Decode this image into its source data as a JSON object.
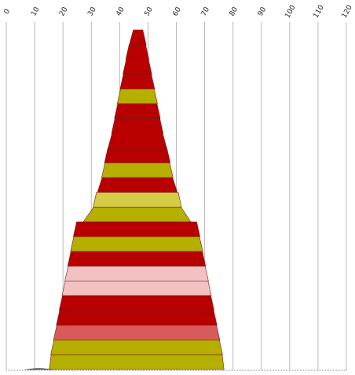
{
  "chart_data": {
    "type": "bar",
    "orientation": "horizontal",
    "layout": "centered-funnel",
    "title": "",
    "xlabel": "",
    "ylabel": "",
    "xlim": [
      0,
      120
    ],
    "ticks": [
      "0",
      "10",
      "20",
      "30",
      "40",
      "50",
      "60",
      "70",
      "80",
      "90",
      "100",
      "110",
      "120"
    ],
    "grid": true,
    "legend": "none",
    "colors": {
      "red": "#b80000",
      "olive": "#b5b000",
      "yellow": "#d4cc44",
      "pink": "#f2c2c2",
      "salmon": "#d85a5a"
    },
    "bars": [
      {
        "start": 44.5,
        "end": 48.5,
        "color": "red"
      },
      {
        "start": 43.0,
        "end": 49.5,
        "color": "red"
      },
      {
        "start": 42.0,
        "end": 50.5,
        "color": "red"
      },
      {
        "start": 41.0,
        "end": 51.5,
        "color": "red"
      },
      {
        "start": 40.0,
        "end": 52.5,
        "color": "olive"
      },
      {
        "start": 39.0,
        "end": 53.5,
        "color": "red"
      },
      {
        "start": 38.0,
        "end": 54.5,
        "color": "red"
      },
      {
        "start": 37.0,
        "end": 55.5,
        "color": "red"
      },
      {
        "start": 35.5,
        "end": 57.0,
        "color": "red"
      },
      {
        "start": 34.5,
        "end": 58.0,
        "color": "olive"
      },
      {
        "start": 33.5,
        "end": 59.0,
        "color": "red"
      },
      {
        "start": 31.5,
        "end": 61.0,
        "color": "yellow"
      },
      {
        "start": 30.5,
        "end": 62.0,
        "color": "olive"
      },
      {
        "start": 24.5,
        "end": 67.5,
        "color": "red"
      },
      {
        "start": 23.5,
        "end": 68.5,
        "color": "olive"
      },
      {
        "start": 22.5,
        "end": 69.5,
        "color": "red"
      },
      {
        "start": 21.5,
        "end": 70.5,
        "color": "pink"
      },
      {
        "start": 20.5,
        "end": 71.5,
        "color": "pink"
      },
      {
        "start": 19.5,
        "end": 72.5,
        "color": "red"
      },
      {
        "start": 18.5,
        "end": 73.5,
        "color": "red"
      },
      {
        "start": 17.5,
        "end": 74.5,
        "color": "salmon"
      },
      {
        "start": 16.5,
        "end": 75.5,
        "color": "olive"
      },
      {
        "start": 15.5,
        "end": 76.5,
        "color": "olive"
      }
    ],
    "baseline_marker": {
      "start": 3.5,
      "end": 14.0
    }
  }
}
